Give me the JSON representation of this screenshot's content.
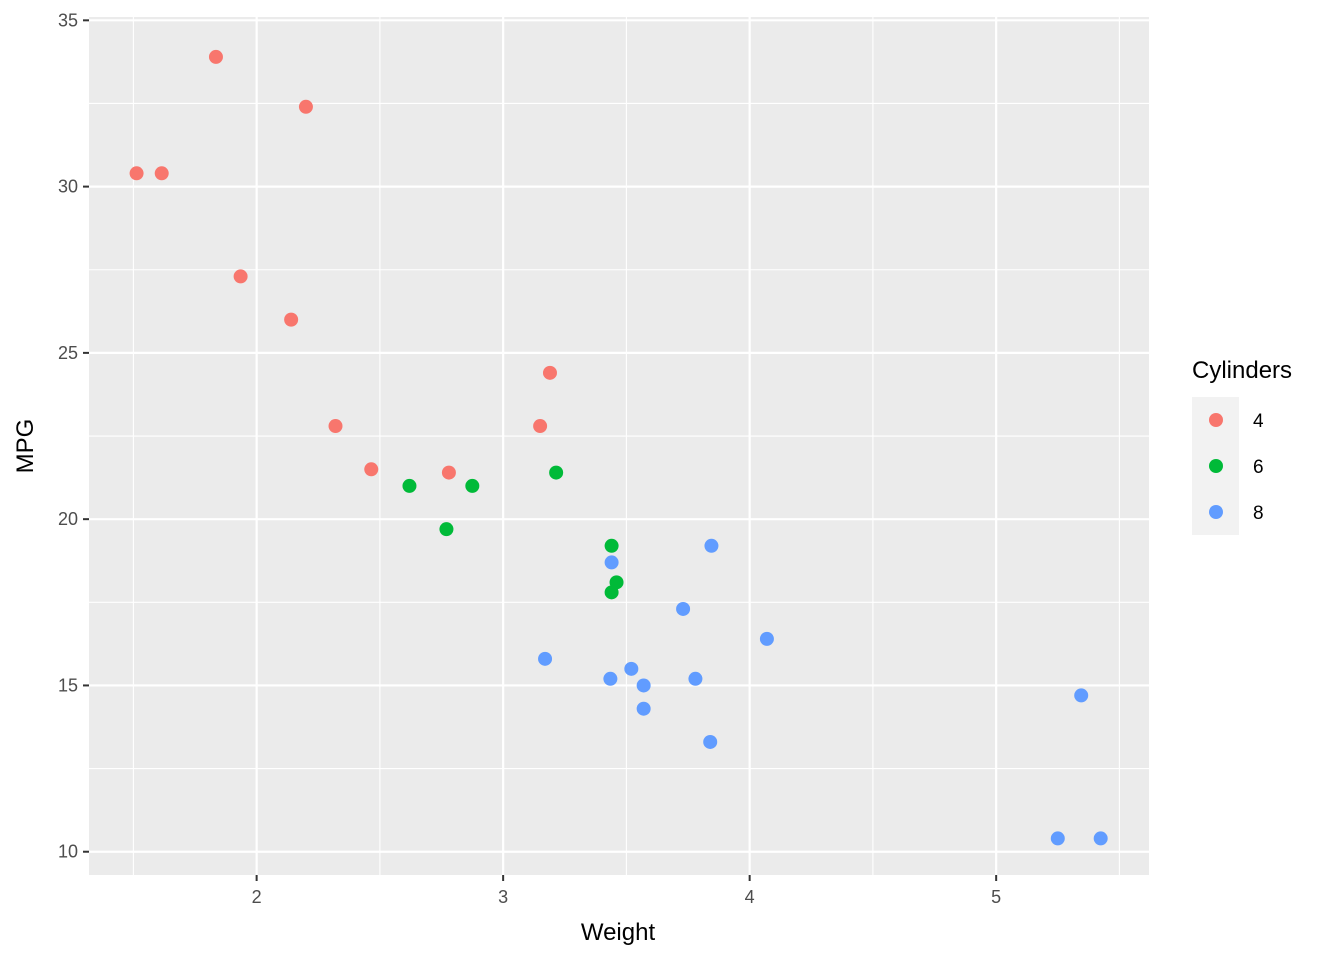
{
  "chart_data": {
    "type": "scatter",
    "title": "",
    "xlabel": "Weight",
    "ylabel": "MPG",
    "xlim": [
      1.32,
      5.62
    ],
    "ylim": [
      9.3,
      35.1
    ],
    "xticks": [
      2,
      3,
      4,
      5
    ],
    "yticks": [
      10,
      15,
      20,
      25,
      30,
      35
    ],
    "grid": true,
    "legend": {
      "title": "Cylinders",
      "position": "right"
    },
    "series": [
      {
        "name": "4",
        "color": "#F8766D",
        "points": [
          [
            2.32,
            22.8
          ],
          [
            3.19,
            24.4
          ],
          [
            3.15,
            22.8
          ],
          [
            2.2,
            32.4
          ],
          [
            1.615,
            30.4
          ],
          [
            1.835,
            33.9
          ],
          [
            2.465,
            21.5
          ],
          [
            1.935,
            27.3
          ],
          [
            2.14,
            26.0
          ],
          [
            1.513,
            30.4
          ],
          [
            2.78,
            21.4
          ]
        ]
      },
      {
        "name": "6",
        "color": "#00BA38",
        "points": [
          [
            2.62,
            21.0
          ],
          [
            2.875,
            21.0
          ],
          [
            3.215,
            21.4
          ],
          [
            3.46,
            18.1
          ],
          [
            3.44,
            19.2
          ],
          [
            3.44,
            17.8
          ],
          [
            2.77,
            19.7
          ]
        ]
      },
      {
        "name": "8",
        "color": "#619CFF",
        "points": [
          [
            3.44,
            18.7
          ],
          [
            3.57,
            14.3
          ],
          [
            4.07,
            16.4
          ],
          [
            3.73,
            17.3
          ],
          [
            3.78,
            15.2
          ],
          [
            5.25,
            10.4
          ],
          [
            5.424,
            10.4
          ],
          [
            5.345,
            14.7
          ],
          [
            3.52,
            15.5
          ],
          [
            3.435,
            15.2
          ],
          [
            3.84,
            13.3
          ],
          [
            3.845,
            19.2
          ],
          [
            3.17,
            15.8
          ],
          [
            3.57,
            15.0
          ]
        ]
      }
    ]
  }
}
